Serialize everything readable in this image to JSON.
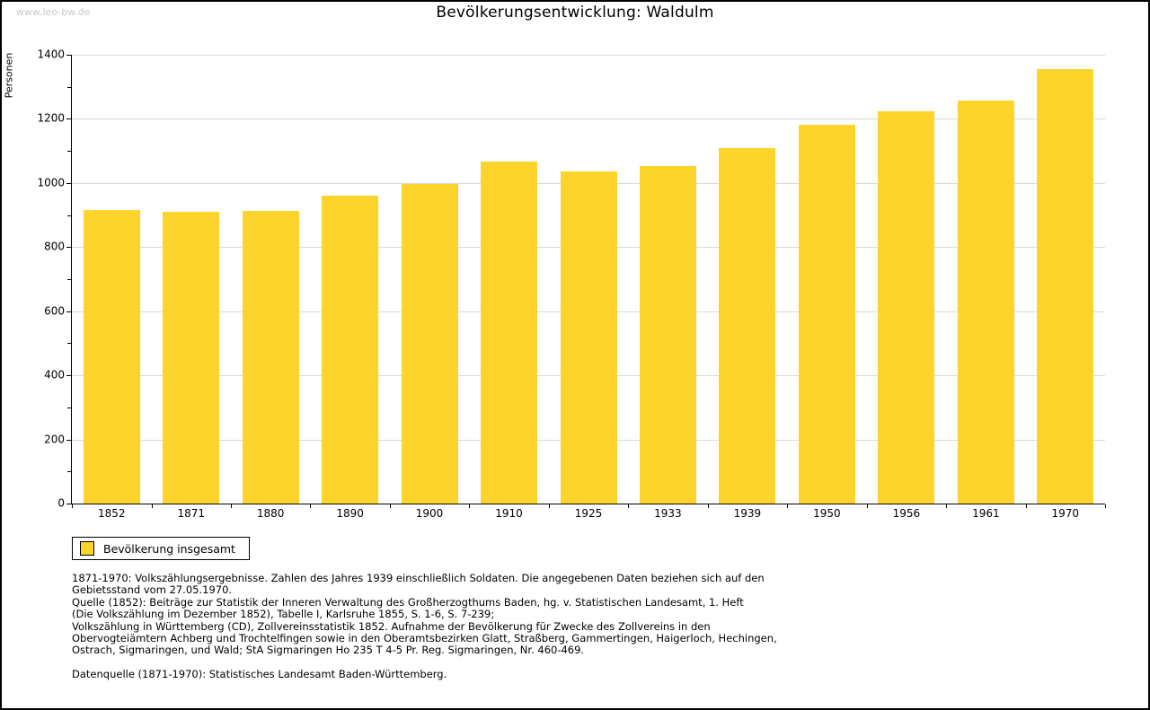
{
  "watermark": "www.leo-bw.de",
  "chart": {
    "title": "Bevölkerungsentwicklung: Waldulm",
    "ylabel": "Personen"
  },
  "chart_data": {
    "type": "bar",
    "title": "Bevölkerungsentwicklung: Waldulm",
    "xlabel": "",
    "ylabel": "Personen",
    "categories": [
      "1852",
      "1871",
      "1880",
      "1890",
      "1900",
      "1910",
      "1925",
      "1933",
      "1939",
      "1950",
      "1956",
      "1961",
      "1970"
    ],
    "series": [
      {
        "name": "Bevölkerung insgesamt",
        "values": [
          915,
          909,
          912,
          960,
          998,
          1068,
          1035,
          1052,
          1108,
          1181,
          1223,
          1256,
          1354
        ]
      }
    ],
    "ylim": [
      0,
      1400
    ],
    "y_major_step": 200,
    "y_minor_step": 100,
    "grid": true,
    "gridline_color": "#d9d9d9",
    "bar_color": "#fcd42c",
    "legend_position": "bottom-left"
  },
  "legend": {
    "label": "Bevölkerung insgesamt",
    "swatch_color": "#fcd42c"
  },
  "footnotes": {
    "lines": [
      "1871-1970: Volkszählungsergebnisse. Zahlen des Jahres 1939 einschließlich Soldaten. Die angegebenen Daten beziehen sich auf den",
      "Gebietsstand vom 27.05.1970.",
      "Quelle (1852): Beiträge zur Statistik der Inneren Verwaltung des Großherzogthums Baden, hg. v. Statistischen Landesamt, 1. Heft",
      "(Die Volkszählung im Dezember 1852), Tabelle I, Karlsruhe 1855, S. 1-6, S. 7-239;",
      "Volkszählung in Württemberg (CD), Zollvereinsstatistik 1852. Aufnahme der Bevölkerung für Zwecke des Zollvereins in den",
      "Obervogteiämtern Achberg und Trochtelfingen sowie in den Oberamtsbezirken Glatt, Straßberg, Gammertingen, Haigerloch, Hechingen,",
      "Ostrach, Sigmaringen, und Wald; StA Sigmaringen Ho 235 T 4-5 Pr. Reg. Sigmaringen, Nr. 460-469.",
      "",
      "Datenquelle (1871-1970): Statistisches Landesamt Baden-Württemberg."
    ]
  }
}
